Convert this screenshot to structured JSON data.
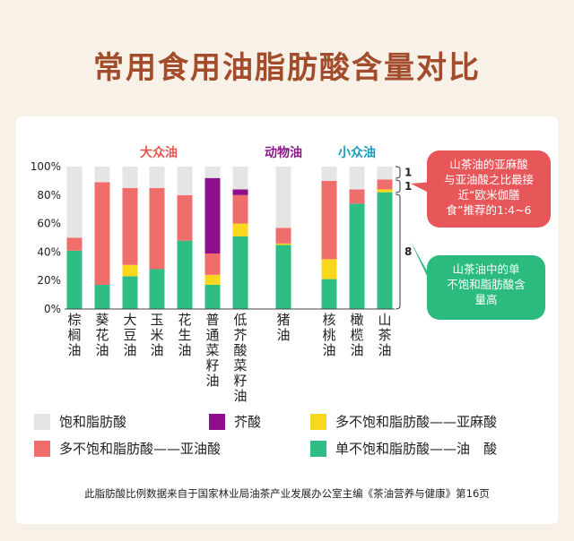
{
  "title": "常用食用油脂肪酸含量对比",
  "chart_data": {
    "type": "bar",
    "stacked": true,
    "ylim": [
      0,
      100
    ],
    "yticks": [
      "0%",
      "20%",
      "40%",
      "60%",
      "80%",
      "100%"
    ],
    "groups": [
      {
        "label": "大众油",
        "color": "#e2584c"
      },
      {
        "label": "动物油",
        "color": "#8a1a8a"
      },
      {
        "label": "小众油",
        "color": "#1c9bbf"
      }
    ],
    "categories": [
      "棕榈油",
      "葵花油",
      "大豆油",
      "玉米油",
      "花生油",
      "普通菜籽油",
      "低芥酸菜籽油",
      "猪油",
      "核桃油",
      "橄榄油",
      "山茶油"
    ],
    "series": [
      {
        "name": "单不饱和脂肪酸——油　酸",
        "color": "#2fbd86",
        "values": [
          41,
          17,
          23,
          28,
          48,
          17,
          51,
          45,
          21,
          74,
          82
        ]
      },
      {
        "name": "多不饱和脂肪酸——亚麻酸",
        "color": "#f9d71c",
        "values": [
          0,
          0,
          8,
          0,
          0,
          7,
          9,
          1,
          14,
          0,
          2
        ]
      },
      {
        "name": "多不饱和脂肪酸——亚油酸",
        "color": "#ef6d6b",
        "values": [
          9,
          72,
          54,
          57,
          32,
          15,
          20,
          11,
          55,
          10,
          7
        ]
      },
      {
        "name": "芥酸",
        "color": "#8e0f8c",
        "values": [
          0,
          0,
          0,
          0,
          0,
          53,
          4,
          0,
          0,
          0,
          0
        ]
      },
      {
        "name": "饱和脂肪酸",
        "color": "#e6e5e3",
        "values": [
          50,
          11,
          15,
          15,
          20,
          8,
          16,
          43,
          10,
          16,
          9
        ]
      }
    ],
    "ratio_labels": [
      "1",
      "1",
      "8"
    ],
    "annotations": [
      "山茶油的亚麻酸与亚油酸之比最接近“欧米伽膳食”推荐的1:4~6",
      "山茶油中的单不饱和脂肪酸含量高"
    ]
  },
  "legend": [
    {
      "label": "饱和脂肪酸",
      "color": "#e6e5e3"
    },
    {
      "label": "芥酸",
      "color": "#8e0f8c"
    },
    {
      "label": "多不饱和脂肪酸——亚麻酸",
      "color": "#f9d71c"
    },
    {
      "label": "多不饱和脂肪酸——亚油酸",
      "color": "#ef6d6b"
    },
    {
      "label": "单不饱和脂肪酸——油　酸",
      "color": "#2fbd86"
    }
  ],
  "note": "此脂肪酸比例数据来自于国家林业局油茶产业发展办公室主编《茶油营养与健康》第16页"
}
